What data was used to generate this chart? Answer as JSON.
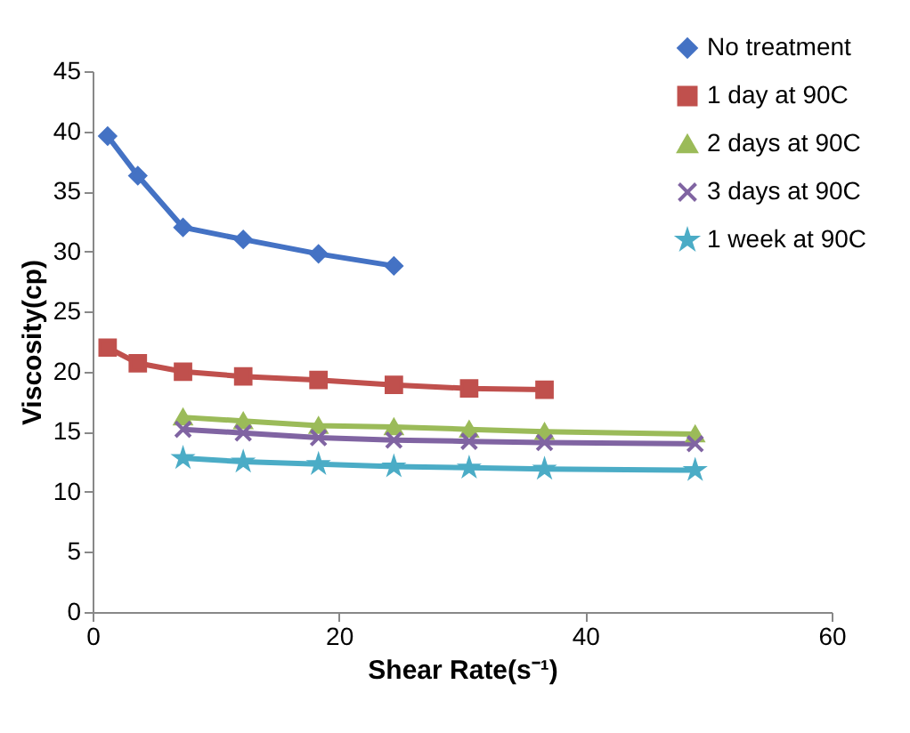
{
  "chart_data": {
    "type": "line",
    "xlabel": "Shear Rate(s⁻¹)",
    "ylabel": "Viscosity(cp)",
    "xlim": [
      0,
      60
    ],
    "xticks": [
      0,
      20,
      40,
      60
    ],
    "ylim": [
      0,
      45
    ],
    "yticks": [
      0,
      5,
      10,
      15,
      20,
      25,
      30,
      35,
      40,
      45
    ],
    "grid": false,
    "legend": "top right",
    "series": [
      {
        "name": "No treatment",
        "color": "#4472c4",
        "marker": "diamond",
        "x": [
          1.22,
          3.67,
          7.34,
          12.23,
          18.34,
          24.46
        ],
        "values": [
          39.6,
          36.3,
          32.0,
          31.0,
          29.8,
          28.8
        ]
      },
      {
        "name": "1 day at 90C",
        "color": "#c0504d",
        "marker": "square",
        "x": [
          1.22,
          3.67,
          7.34,
          12.23,
          18.34,
          24.46,
          30.57,
          36.69
        ],
        "values": [
          22.0,
          20.7,
          20.0,
          19.6,
          19.3,
          18.9,
          18.6,
          18.5
        ]
      },
      {
        "name": "2 days at 90C",
        "color": "#9bbb59",
        "marker": "triangle",
        "x": [
          7.34,
          12.23,
          18.34,
          24.46,
          30.57,
          36.69,
          48.92
        ],
        "values": [
          16.2,
          15.9,
          15.5,
          15.4,
          15.2,
          15.0,
          14.8
        ]
      },
      {
        "name": "3 days at 90C",
        "color": "#8064a2",
        "marker": "cross",
        "x": [
          7.34,
          12.23,
          18.34,
          24.46,
          30.57,
          36.69,
          48.92
        ],
        "values": [
          15.2,
          14.9,
          14.5,
          14.3,
          14.2,
          14.1,
          14.0
        ]
      },
      {
        "name": "1 week at 90C",
        "color": "#4bacc6",
        "marker": "star",
        "x": [
          7.34,
          12.23,
          18.34,
          24.46,
          30.57,
          36.69,
          48.92
        ],
        "values": [
          12.8,
          12.5,
          12.3,
          12.1,
          12.0,
          11.9,
          11.8
        ]
      }
    ]
  }
}
